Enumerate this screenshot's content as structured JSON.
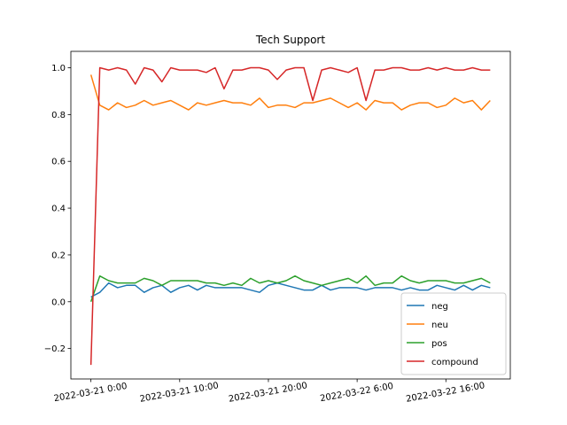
{
  "chart_data": {
    "type": "line",
    "title": "Tech Support",
    "xlabel": "",
    "ylabel": "",
    "ylim": [
      -0.33,
      1.07
    ],
    "yticks": [
      -0.2,
      0.0,
      0.2,
      0.4,
      0.6,
      0.8,
      1.0
    ],
    "ytick_labels": [
      "−0.2",
      "0.0",
      "0.2",
      "0.4",
      "0.6",
      "0.8",
      "1.0"
    ],
    "x_tick_positions": [
      0,
      10,
      20,
      30,
      40
    ],
    "x_tick_labels": [
      "2022-03-21 0:00",
      "2022-03-21 10:00",
      "2022-03-21 20:00",
      "2022-03-22 6:00",
      "2022-03-22 16:00"
    ],
    "x": [
      0,
      1,
      2,
      3,
      4,
      5,
      6,
      7,
      8,
      9,
      10,
      11,
      12,
      13,
      14,
      15,
      16,
      17,
      18,
      19,
      20,
      21,
      22,
      23,
      24,
      25,
      26,
      27,
      28,
      29,
      30,
      31,
      32,
      33,
      34,
      35,
      36,
      37,
      38,
      39,
      40,
      41,
      42,
      43,
      44,
      45
    ],
    "legend_position": "lower-right",
    "grid": false,
    "series": [
      {
        "name": "neg",
        "color": "#1f77b4",
        "values": [
          0.02,
          0.04,
          0.08,
          0.06,
          0.07,
          0.07,
          0.04,
          0.06,
          0.07,
          0.04,
          0.06,
          0.07,
          0.05,
          0.07,
          0.06,
          0.06,
          0.06,
          0.06,
          0.05,
          0.04,
          0.07,
          0.08,
          0.07,
          0.06,
          0.05,
          0.05,
          0.07,
          0.05,
          0.06,
          0.06,
          0.06,
          0.05,
          0.06,
          0.06,
          0.06,
          0.05,
          0.06,
          0.05,
          0.05,
          0.07,
          0.06,
          0.05,
          0.07,
          0.05,
          0.07,
          0.06
        ]
      },
      {
        "name": "neu",
        "color": "#ff7f0e",
        "values": [
          0.97,
          0.84,
          0.82,
          0.85,
          0.83,
          0.84,
          0.86,
          0.84,
          0.85,
          0.86,
          0.84,
          0.82,
          0.85,
          0.84,
          0.85,
          0.86,
          0.85,
          0.85,
          0.84,
          0.87,
          0.83,
          0.84,
          0.84,
          0.83,
          0.85,
          0.85,
          0.86,
          0.87,
          0.85,
          0.83,
          0.85,
          0.82,
          0.86,
          0.85,
          0.85,
          0.82,
          0.84,
          0.85,
          0.85,
          0.83,
          0.84,
          0.87,
          0.85,
          0.86,
          0.82,
          0.86
        ]
      },
      {
        "name": "pos",
        "color": "#2ca02c",
        "values": [
          0.0,
          0.11,
          0.09,
          0.08,
          0.08,
          0.08,
          0.1,
          0.09,
          0.07,
          0.09,
          0.09,
          0.09,
          0.09,
          0.08,
          0.08,
          0.07,
          0.08,
          0.07,
          0.1,
          0.08,
          0.09,
          0.08,
          0.09,
          0.11,
          0.09,
          0.08,
          0.07,
          0.08,
          0.09,
          0.1,
          0.08,
          0.11,
          0.07,
          0.08,
          0.08,
          0.11,
          0.09,
          0.08,
          0.09,
          0.09,
          0.09,
          0.08,
          0.08,
          0.09,
          0.1,
          0.08
        ]
      },
      {
        "name": "compound",
        "color": "#d62728",
        "values": [
          -0.27,
          1.0,
          0.99,
          1.0,
          0.99,
          0.93,
          1.0,
          0.99,
          0.94,
          1.0,
          0.99,
          0.99,
          0.99,
          0.98,
          1.0,
          0.91,
          0.99,
          0.99,
          1.0,
          1.0,
          0.99,
          0.95,
          0.99,
          1.0,
          1.0,
          0.86,
          0.99,
          1.0,
          0.99,
          0.98,
          1.0,
          0.86,
          0.99,
          0.99,
          1.0,
          1.0,
          0.99,
          0.99,
          1.0,
          0.99,
          1.0,
          0.99,
          0.99,
          1.0,
          0.99,
          0.99
        ]
      }
    ]
  }
}
